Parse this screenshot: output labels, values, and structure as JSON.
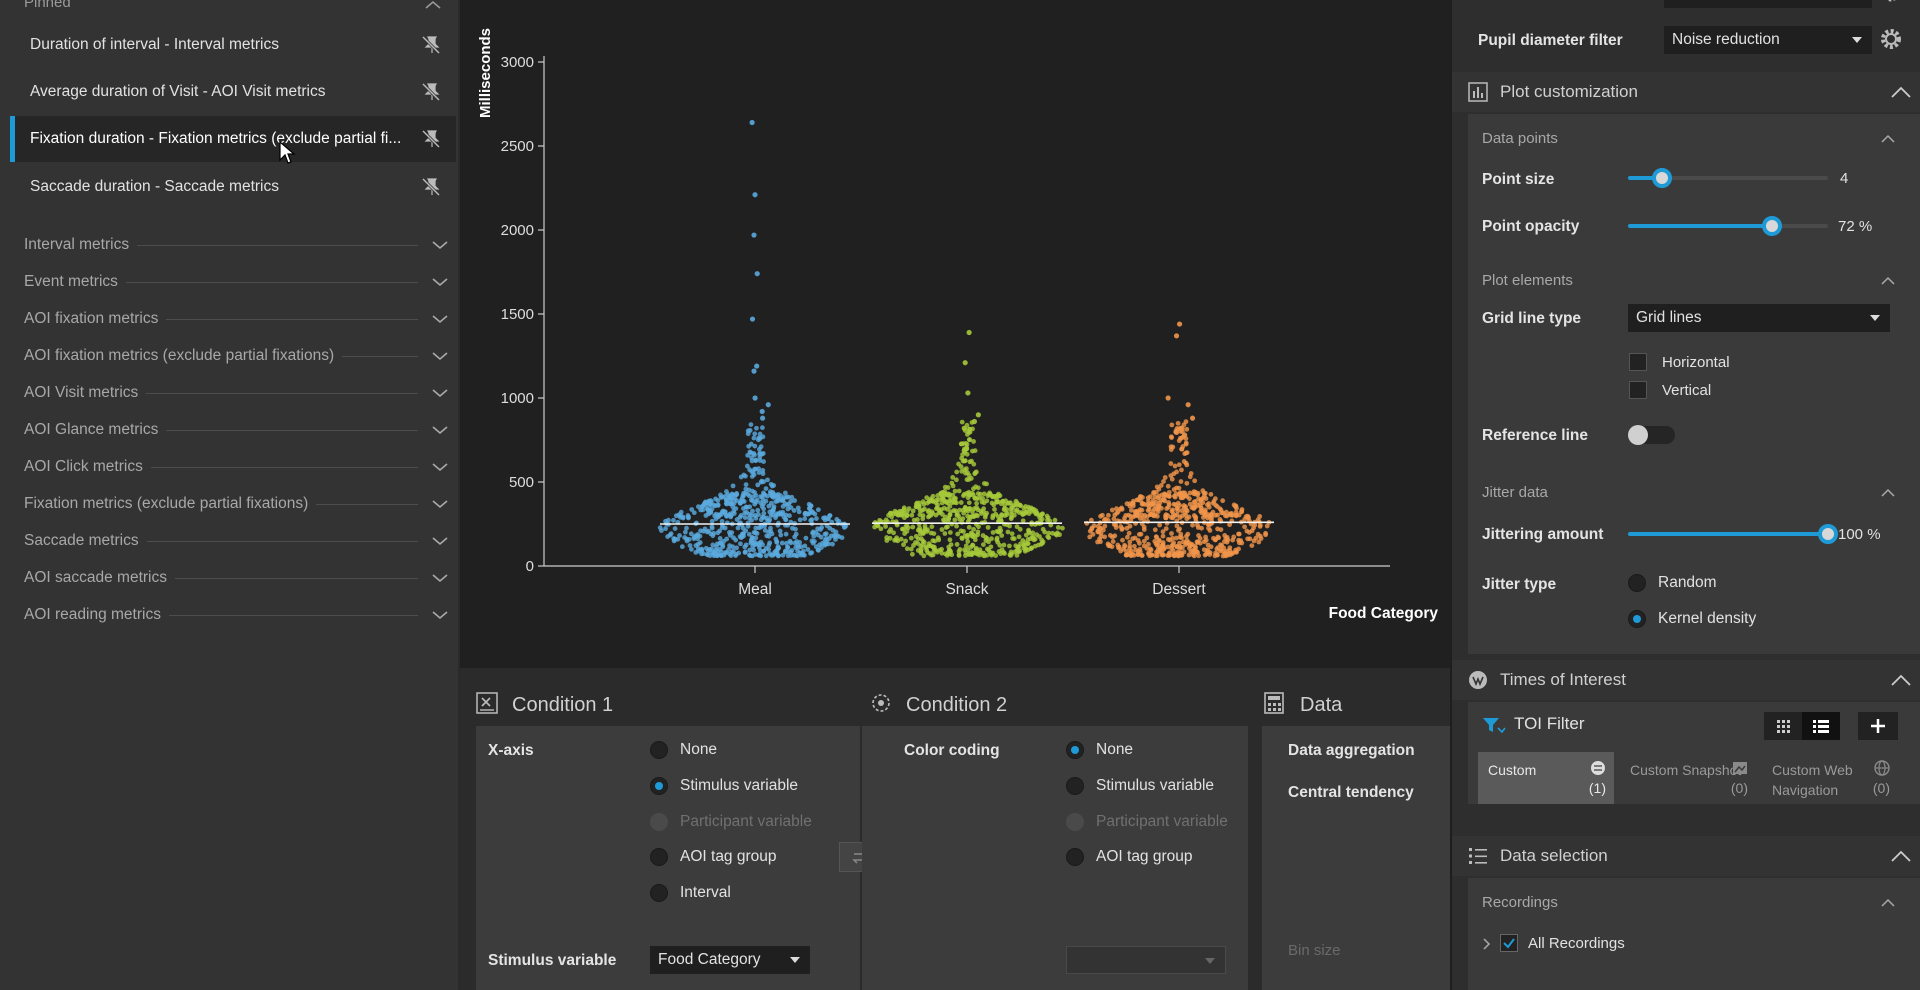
{
  "left_panel": {
    "pinned_header": "Pinned",
    "pinned_items": [
      {
        "label": "Duration of interval - Interval metrics"
      },
      {
        "label": "Average duration of Visit - AOI Visit metrics"
      },
      {
        "label": "Fixation duration - Fixation metrics (exclude partial fi..."
      },
      {
        "label": "Saccade duration - Saccade metrics"
      }
    ],
    "categories": [
      {
        "label": "Interval metrics"
      },
      {
        "label": "Event metrics"
      },
      {
        "label": "AOI fixation metrics"
      },
      {
        "label": "AOI fixation metrics (exclude partial fixations)"
      },
      {
        "label": "AOI Visit metrics"
      },
      {
        "label": "AOI Glance metrics"
      },
      {
        "label": "AOI Click metrics"
      },
      {
        "label": "Fixation metrics (exclude partial fixations)"
      },
      {
        "label": "Saccade metrics"
      },
      {
        "label": "AOI saccade metrics"
      },
      {
        "label": "AOI reading metrics"
      }
    ]
  },
  "chart_data": {
    "type": "scatter",
    "title": "",
    "xlabel": "Food Category",
    "ylabel": "Milliseconds",
    "categories": [
      "Meal",
      "Snack",
      "Dessert"
    ],
    "ylim": [
      0,
      3000
    ],
    "yticks": [
      0,
      500,
      1000,
      1500,
      2000,
      2500,
      3000
    ],
    "series": [
      {
        "category": "Meal",
        "color": "#5aa9de",
        "median": 250,
        "outliers": [
          2640,
          2210,
          1970,
          1740,
          1470,
          1190,
          1160,
          1000,
          960,
          920,
          880
        ]
      },
      {
        "category": "Snack",
        "color": "#a6c93a",
        "median": 255,
        "outliers": [
          1390,
          1210,
          1030,
          900,
          860,
          820
        ]
      },
      {
        "category": "Dessert",
        "color": "#f0954a",
        "median": 260,
        "outliers": [
          1440,
          1370,
          1000,
          960,
          880,
          820,
          780
        ]
      }
    ],
    "grid": false
  },
  "bottom": {
    "condition1": {
      "title": "Condition 1",
      "label": "X-axis",
      "options": [
        "None",
        "Stimulus variable",
        "Participant variable",
        "AOI tag group",
        "Interval"
      ],
      "selected": "Stimulus variable",
      "disabled": [
        "Participant variable"
      ],
      "stimulus_label": "Stimulus variable",
      "stimulus_value": "Food Category"
    },
    "condition2": {
      "title": "Condition 2",
      "label": "Color coding",
      "options": [
        "None",
        "Stimulus variable",
        "Participant variable",
        "AOI tag group"
      ],
      "selected": "None",
      "disabled": [
        "Participant variable"
      ]
    },
    "data": {
      "title": "Data",
      "aggregation": "Data aggregation",
      "central": "Central tendency",
      "bin": "Bin size"
    }
  },
  "right_panel": {
    "pupil_label": "Pupil diameter filter",
    "pupil_value": "Noise reduction",
    "plot_custom": "Plot customization",
    "data_points": "Data points",
    "point_size_label": "Point size",
    "point_size_value": "4",
    "point_size_frac": 0.17,
    "point_opacity_label": "Point opacity",
    "point_opacity_value": "72",
    "point_opacity_unit": "%",
    "point_opacity_frac": 0.72,
    "plot_elements": "Plot elements",
    "grid_line_label": "Grid line type",
    "grid_line_value": "Grid lines",
    "horizontal": "Horizontal",
    "vertical": "Vertical",
    "reference_line": "Reference line",
    "jitter_data": "Jitter data",
    "jitter_amount_label": "Jittering amount",
    "jitter_amount_value": "100",
    "jitter_amount_unit": "%",
    "jitter_amount_frac": 1.0,
    "jitter_type_label": "Jitter type",
    "jitter_random": "Random",
    "jitter_kernel": "Kernel density",
    "toi_title": "Times of Interest",
    "toi_filter": "TOI Filter",
    "toi_custom": "Custom",
    "toi_custom_count": "(1)",
    "toi_snapshot": "Custom Snapshot",
    "toi_snapshot_count": "(0)",
    "toi_web": "Custom Web Navigation",
    "toi_web_count": "(0)",
    "data_selection": "Data selection",
    "recordings": "Recordings",
    "all_recordings": "All Recordings"
  },
  "colors": {
    "accent": "#1e9bd7"
  }
}
